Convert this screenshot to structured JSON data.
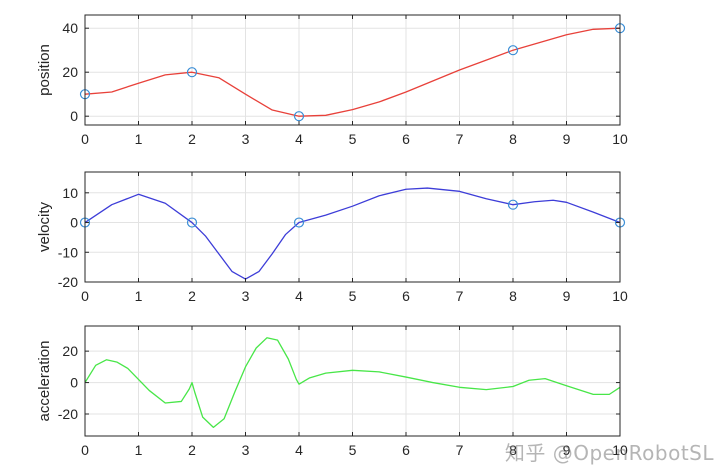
{
  "chart_data": [
    {
      "type": "line",
      "title": "",
      "xlabel": "",
      "ylabel": "position",
      "xlim": [
        0,
        10
      ],
      "ylim": [
        -4,
        46
      ],
      "xticks": [
        0,
        1,
        2,
        3,
        4,
        5,
        6,
        7,
        8,
        9,
        10
      ],
      "yticks": [
        0,
        20,
        40
      ],
      "grid": true,
      "series": [
        {
          "color": "#e8413a",
          "x": [
            0,
            0.5,
            1,
            1.5,
            2,
            2.5,
            3,
            3.5,
            4,
            4.5,
            5,
            5.5,
            6,
            6.5,
            7,
            7.5,
            8,
            8.5,
            9,
            9.5,
            10
          ],
          "values": [
            10,
            11,
            15,
            18.8,
            20,
            17.5,
            10,
            2.8,
            0,
            0.4,
            3,
            6.5,
            11,
            16,
            21,
            25.5,
            30,
            33.5,
            37,
            39.5,
            40
          ]
        }
      ],
      "markers": {
        "x": [
          0,
          2,
          4,
          8,
          10
        ],
        "values": [
          10,
          20,
          0,
          30,
          40
        ],
        "color": "#3b8ed6"
      }
    },
    {
      "type": "line",
      "title": "",
      "xlabel": "",
      "ylabel": "velocity",
      "xlim": [
        0,
        10
      ],
      "ylim": [
        -20,
        17
      ],
      "xticks": [
        0,
        1,
        2,
        3,
        4,
        5,
        6,
        7,
        8,
        9,
        10
      ],
      "yticks": [
        -20,
        -10,
        0,
        10
      ],
      "grid": true,
      "series": [
        {
          "color": "#3d3dd8",
          "x": [
            0,
            0.5,
            1,
            1.5,
            2,
            2.25,
            2.5,
            2.75,
            3,
            3.25,
            3.5,
            3.75,
            4,
            4.5,
            5,
            5.5,
            6,
            6.4,
            7,
            7.5,
            8,
            8.4,
            8.75,
            9,
            9.5,
            10
          ],
          "values": [
            0,
            6,
            9.5,
            6.5,
            0,
            -4.5,
            -10.5,
            -16.5,
            -19,
            -16.5,
            -10.5,
            -4,
            0,
            2.5,
            5.5,
            9,
            11.2,
            11.6,
            10.5,
            8,
            6,
            7,
            7.5,
            6.8,
            3.5,
            0
          ]
        }
      ],
      "markers": {
        "x": [
          0,
          2,
          4,
          8,
          10
        ],
        "values": [
          0,
          0,
          0,
          6,
          0
        ],
        "color": "#3b8ed6"
      }
    },
    {
      "type": "line",
      "title": "",
      "xlabel": "",
      "ylabel": "acceleration",
      "xlim": [
        0,
        10
      ],
      "ylim": [
        -34,
        36
      ],
      "xticks": [
        0,
        1,
        2,
        3,
        4,
        5,
        6,
        7,
        8,
        9,
        10
      ],
      "yticks": [
        -20,
        0,
        20
      ],
      "grid": true,
      "series": [
        {
          "color": "#48e648",
          "x": [
            0,
            0.2,
            0.4,
            0.6,
            0.8,
            1,
            1.2,
            1.5,
            1.8,
            1.95,
            2,
            2.05,
            2.2,
            2.4,
            2.6,
            2.8,
            3,
            3.2,
            3.4,
            3.6,
            3.8,
            3.95,
            4,
            4.2,
            4.5,
            5,
            5.5,
            6,
            6.5,
            7,
            7.5,
            8,
            8.3,
            8.6,
            9,
            9.5,
            9.8,
            10
          ],
          "values": [
            0,
            11,
            14.5,
            13,
            9,
            2,
            -5,
            -13,
            -12,
            -4,
            0,
            -6,
            -22,
            -28.5,
            -23,
            -6,
            10,
            22,
            28.5,
            27,
            15,
            2,
            -1,
            3,
            6,
            7.8,
            6.8,
            3.5,
            0,
            -3,
            -4.5,
            -2.5,
            1.5,
            2.5,
            -2,
            -7.5,
            -7.5,
            -3
          ]
        }
      ],
      "markers": {
        "x": [],
        "values": [],
        "color": "#3b8ed6"
      }
    }
  ],
  "watermark": "知乎 @OpenRobotSL"
}
